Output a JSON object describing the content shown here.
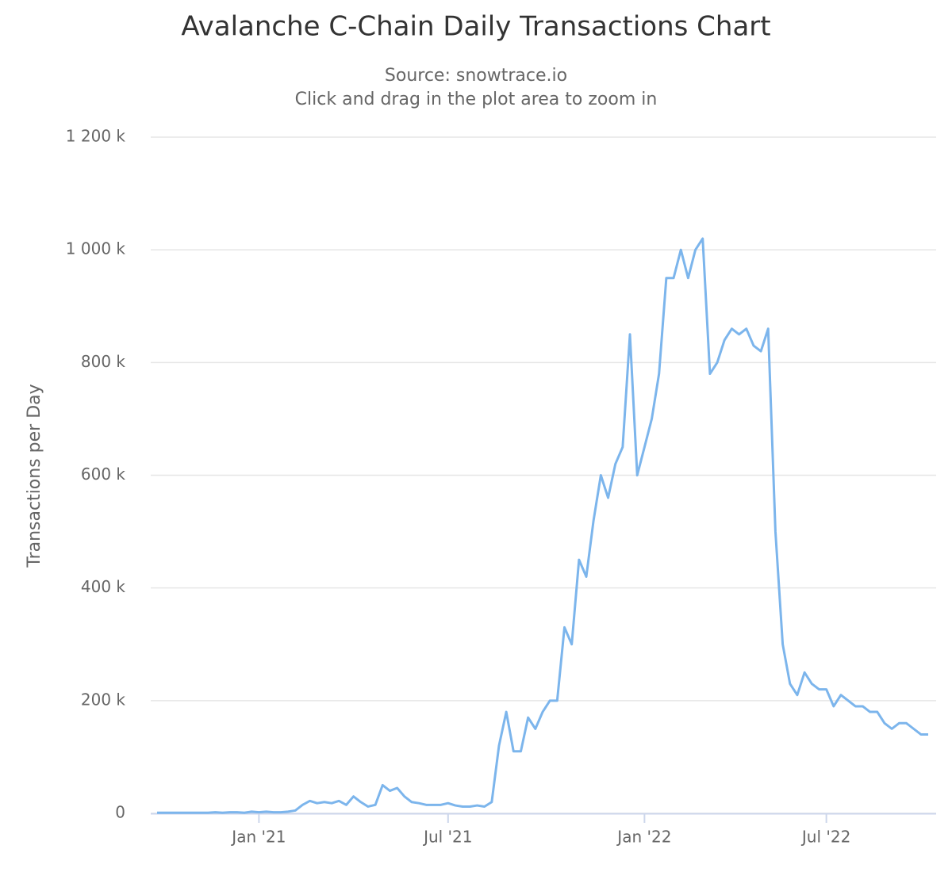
{
  "chart_data": {
    "type": "line",
    "title": "Avalanche C-Chain Daily Transactions Chart",
    "subtitle": [
      "Source: snowtrace.io",
      "Click and drag in the plot area to zoom in"
    ],
    "y_label": "Transactions per Day",
    "categories": [
      null,
      null,
      null,
      null,
      null,
      null,
      null,
      null,
      null,
      null,
      null,
      null,
      null,
      null,
      "Jan '21",
      null,
      null,
      null,
      null,
      null,
      null,
      null,
      null,
      null,
      null,
      null,
      null,
      null,
      null,
      null,
      null,
      null,
      null,
      null,
      null,
      null,
      null,
      null,
      null,
      null,
      "Jul '21",
      null,
      null,
      null,
      null,
      null,
      null,
      null,
      null,
      null,
      null,
      null,
      null,
      null,
      null,
      null,
      null,
      null,
      null,
      null,
      null,
      null,
      null,
      null,
      null,
      null,
      null,
      "Jan '22",
      null,
      null,
      null,
      null,
      null,
      null,
      null,
      null,
      null,
      null,
      null,
      null,
      null,
      null,
      null,
      null,
      null,
      null,
      null,
      null,
      null,
      null,
      null,
      null,
      "Jul '22",
      null,
      null,
      null,
      null,
      null,
      null,
      null,
      null,
      null,
      null,
      null,
      null,
      null,
      null
    ],
    "series": [
      {
        "name": "Transactions per Day",
        "color": "#7cb5ec",
        "values": [
          1000,
          1000,
          1000,
          1000,
          1000,
          1000,
          1000,
          1000,
          2000,
          1000,
          2000,
          2000,
          1000,
          3000,
          2000,
          3000,
          2000,
          2000,
          3000,
          5000,
          15000,
          22000,
          18000,
          20000,
          18000,
          22000,
          15000,
          30000,
          20000,
          12000,
          15000,
          50000,
          40000,
          45000,
          30000,
          20000,
          18000,
          15000,
          15000,
          15000,
          18000,
          14000,
          12000,
          12000,
          14000,
          12000,
          20000,
          120000,
          180000,
          110000,
          110000,
          170000,
          150000,
          180000,
          200000,
          200000,
          330000,
          300000,
          450000,
          420000,
          520000,
          600000,
          560000,
          620000,
          650000,
          850000,
          600000,
          650000,
          700000,
          780000,
          950000,
          950000,
          1000000,
          950000,
          1000000,
          1020000,
          780000,
          800000,
          840000,
          860000,
          850000,
          860000,
          830000,
          820000,
          860000,
          500000,
          300000,
          230000,
          210000,
          250000,
          230000,
          220000,
          220000,
          190000,
          210000,
          200000,
          190000,
          190000,
          180000,
          180000,
          160000,
          150000,
          160000,
          160000,
          150000,
          140000,
          140000
        ]
      }
    ],
    "ylim": [
      0,
      1200000
    ],
    "yticks": [
      0,
      {
        "value": 200000,
        "label": "200 k"
      },
      {
        "value": 400000,
        "label": "400 k"
      },
      {
        "value": 600000,
        "label": "600 k"
      },
      {
        "value": 800000,
        "label": "800 k"
      },
      {
        "value": 1000000,
        "label": "1 000 k"
      },
      {
        "value": 1200000,
        "label": "1 200 k"
      }
    ],
    "grid": true
  }
}
